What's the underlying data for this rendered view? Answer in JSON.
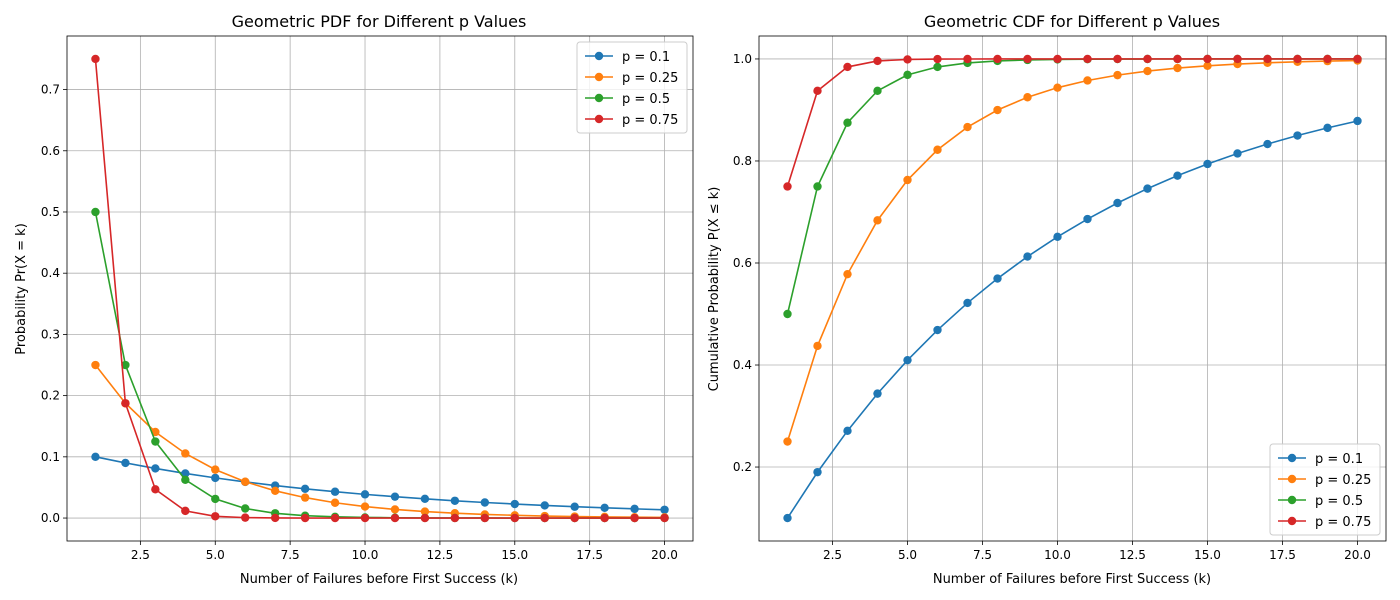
{
  "chart_data": [
    {
      "type": "line",
      "title": "Geometric PDF for Different p Values",
      "xlabel": "Number of Failures before First Success (k)",
      "ylabel": "Probability Pr(X = k)",
      "x": [
        1,
        2,
        3,
        4,
        5,
        6,
        7,
        8,
        9,
        10,
        11,
        12,
        13,
        14,
        15,
        16,
        17,
        18,
        19,
        20
      ],
      "xlim": [
        0.05,
        20.95
      ],
      "ylim": [
        -0.0375,
        0.7875
      ],
      "xticks": [
        2.5,
        5.0,
        7.5,
        10.0,
        12.5,
        15.0,
        17.5,
        20.0
      ],
      "xtick_labels": [
        "2.5",
        "5.0",
        "7.5",
        "10.0",
        "12.5",
        "15.0",
        "17.5",
        "20.0"
      ],
      "yticks": [
        0.0,
        0.1,
        0.2,
        0.3,
        0.4,
        0.5,
        0.6,
        0.7
      ],
      "ytick_labels": [
        "0.0",
        "0.1",
        "0.2",
        "0.3",
        "0.4",
        "0.5",
        "0.6",
        "0.7"
      ],
      "grid": true,
      "legend_position": "top-right",
      "series": [
        {
          "name": "p = 0.1",
          "color": "#1f77b4",
          "values": [
            0.1,
            0.09,
            0.081,
            0.0729,
            0.0656,
            0.059,
            0.0531,
            0.0478,
            0.043,
            0.0387,
            0.0349,
            0.0314,
            0.0282,
            0.0254,
            0.0229,
            0.0206,
            0.0185,
            0.0167,
            0.015,
            0.0135
          ]
        },
        {
          "name": "p = 0.25",
          "color": "#ff7f0e",
          "values": [
            0.25,
            0.1875,
            0.1406,
            0.1055,
            0.0791,
            0.0593,
            0.0445,
            0.0334,
            0.025,
            0.0188,
            0.0141,
            0.0106,
            0.0079,
            0.0059,
            0.0045,
            0.0033,
            0.0025,
            0.0019,
            0.0014,
            0.0011
          ]
        },
        {
          "name": "p = 0.5",
          "color": "#2ca02c",
          "values": [
            0.5,
            0.25,
            0.125,
            0.0625,
            0.0313,
            0.0156,
            0.0078,
            0.0039,
            0.002,
            0.001,
            0.0005,
            0.0002,
            0.0001,
            0.0001,
            0.0,
            0.0,
            0.0,
            0.0,
            0.0,
            0.0
          ]
        },
        {
          "name": "p = 0.75",
          "color": "#d62728",
          "values": [
            0.75,
            0.1875,
            0.0469,
            0.0117,
            0.0029,
            0.0007,
            0.0002,
            0.0,
            0.0,
            0.0,
            0.0,
            0.0,
            0.0,
            0.0,
            0.0,
            0.0,
            0.0,
            0.0,
            0.0,
            0.0
          ]
        }
      ]
    },
    {
      "type": "line",
      "title": "Geometric CDF for Different p Values",
      "xlabel": "Number of Failures before First Success (k)",
      "ylabel": "Cumulative Probability P(X ≤ k)",
      "x": [
        1,
        2,
        3,
        4,
        5,
        6,
        7,
        8,
        9,
        10,
        11,
        12,
        13,
        14,
        15,
        16,
        17,
        18,
        19,
        20
      ],
      "xlim": [
        0.05,
        20.95
      ],
      "ylim": [
        0.055,
        1.045
      ],
      "xticks": [
        2.5,
        5.0,
        7.5,
        10.0,
        12.5,
        15.0,
        17.5,
        20.0
      ],
      "xtick_labels": [
        "2.5",
        "5.0",
        "7.5",
        "10.0",
        "12.5",
        "15.0",
        "17.5",
        "20.0"
      ],
      "yticks": [
        0.2,
        0.4,
        0.6,
        0.8,
        1.0
      ],
      "ytick_labels": [
        "0.2",
        "0.4",
        "0.6",
        "0.8",
        "1.0"
      ],
      "grid": true,
      "legend_position": "bottom-right",
      "series": [
        {
          "name": "p = 0.1",
          "color": "#1f77b4",
          "values": [
            0.1,
            0.19,
            0.271,
            0.3439,
            0.4095,
            0.4686,
            0.5217,
            0.5695,
            0.6126,
            0.6513,
            0.6862,
            0.7176,
            0.7458,
            0.7712,
            0.7941,
            0.8147,
            0.8332,
            0.8499,
            0.8649,
            0.8784
          ]
        },
        {
          "name": "p = 0.25",
          "color": "#ff7f0e",
          "values": [
            0.25,
            0.4375,
            0.5781,
            0.6836,
            0.7627,
            0.822,
            0.8665,
            0.8999,
            0.9249,
            0.9437,
            0.9578,
            0.9683,
            0.9762,
            0.9822,
            0.9866,
            0.99,
            0.9925,
            0.9944,
            0.9958,
            0.9968
          ]
        },
        {
          "name": "p = 0.5",
          "color": "#2ca02c",
          "values": [
            0.5,
            0.75,
            0.875,
            0.9375,
            0.9688,
            0.9844,
            0.9922,
            0.9961,
            0.998,
            0.999,
            0.9995,
            0.9998,
            0.9999,
            0.9999,
            1.0,
            1.0,
            1.0,
            1.0,
            1.0,
            1.0
          ]
        },
        {
          "name": "p = 0.75",
          "color": "#d62728",
          "values": [
            0.75,
            0.9375,
            0.9844,
            0.9961,
            0.999,
            0.9998,
            0.9999,
            1.0,
            1.0,
            1.0,
            1.0,
            1.0,
            1.0,
            1.0,
            1.0,
            1.0,
            1.0,
            1.0,
            1.0,
            1.0
          ]
        }
      ]
    }
  ]
}
